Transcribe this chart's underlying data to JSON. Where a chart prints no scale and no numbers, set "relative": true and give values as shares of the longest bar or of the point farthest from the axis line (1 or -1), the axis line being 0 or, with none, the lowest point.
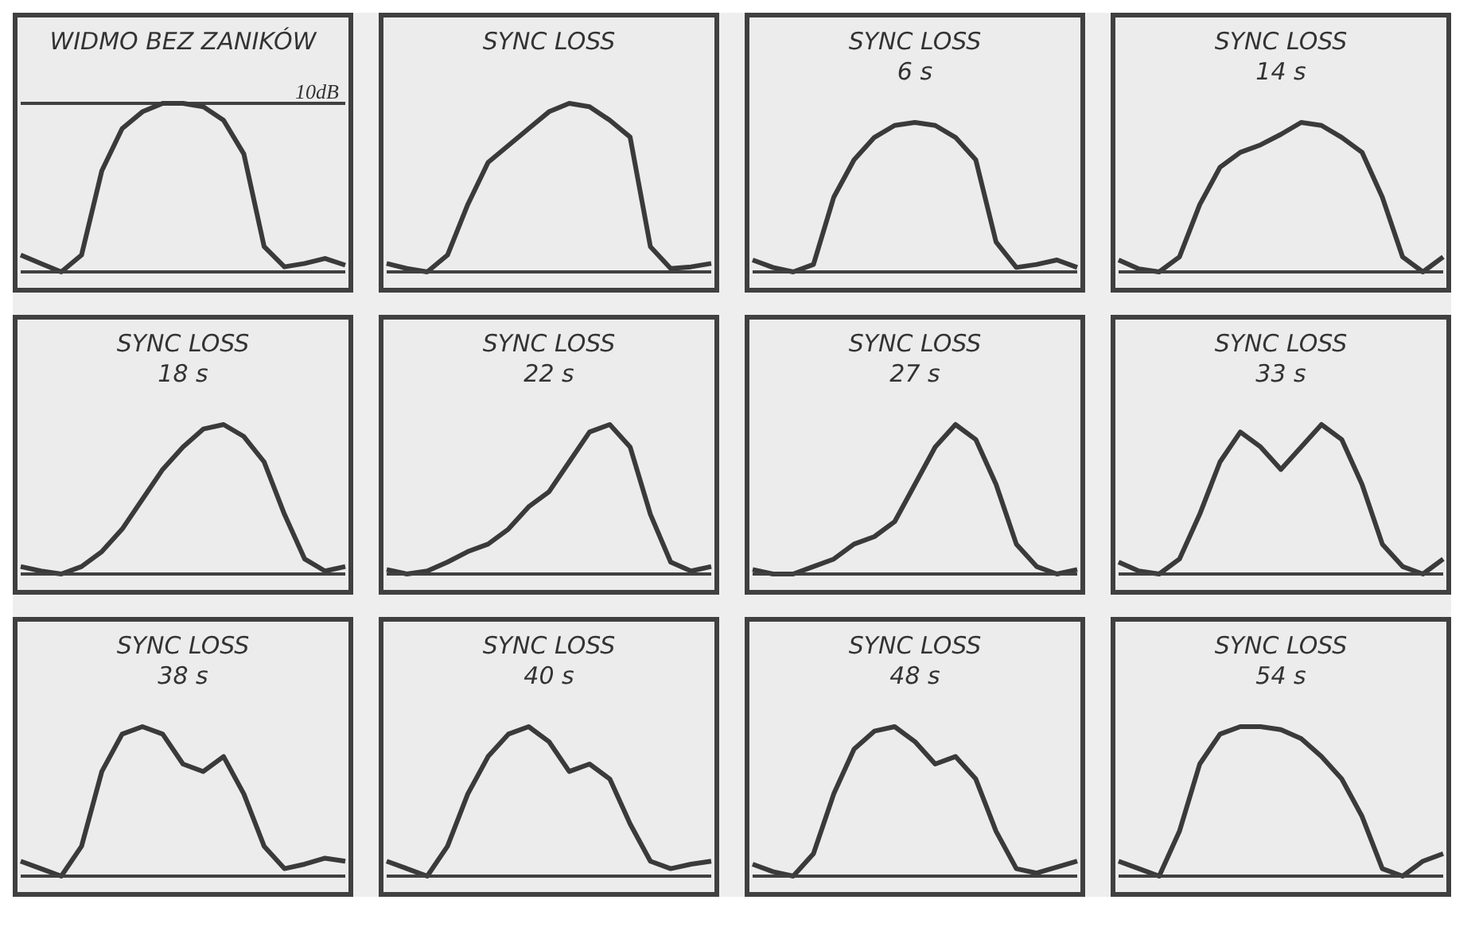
{
  "chart_data": [
    {
      "type": "line",
      "title": "WIDMO BEZ ZANIKÓW",
      "relative": true,
      "tick_labels": false,
      "grid": false,
      "legend": false,
      "marker": "none",
      "line_style": "solid",
      "ref_lines": [
        {
          "axis": "y",
          "value": 1,
          "label": "10dB"
        }
      ],
      "categories": [
        null,
        null,
        null,
        null,
        null,
        null,
        null,
        null,
        null,
        null,
        null,
        null,
        null,
        null,
        null,
        null,
        null
      ],
      "series": [
        {
          "color": "#3a3a3a",
          "values": [
            0.1,
            0.05,
            0,
            0.1,
            0.6,
            0.85,
            0.95,
            1,
            1,
            0.98,
            0.9,
            0.7,
            0.15,
            0.03,
            0.05,
            0.08,
            0.04
          ]
        }
      ]
    },
    {
      "type": "line",
      "title": "SYNC LOSS",
      "relative": true,
      "tick_labels": false,
      "grid": false,
      "legend": false,
      "marker": "none",
      "line_style": "solid",
      "categories": [
        null,
        null,
        null,
        null,
        null,
        null,
        null,
        null,
        null,
        null,
        null,
        null,
        null,
        null,
        null,
        null,
        null
      ],
      "series": [
        {
          "color": "#3a3a3a",
          "values": [
            0.05,
            0.02,
            0,
            0.1,
            0.4,
            0.65,
            0.75,
            0.85,
            0.95,
            1,
            0.98,
            0.9,
            0.8,
            0.15,
            0.02,
            0.03,
            0.05
          ]
        }
      ]
    },
    {
      "type": "line",
      "title": "SYNC LOSS",
      "subtitle": "6 s",
      "relative": true,
      "tick_labels": false,
      "grid": false,
      "legend": false,
      "marker": "none",
      "line_style": "solid",
      "categories": [
        null,
        null,
        null,
        null,
        null,
        null,
        null,
        null,
        null,
        null,
        null,
        null,
        null,
        null,
        null,
        null,
        null
      ],
      "series": [
        {
          "color": "#3a3a3a",
          "values": [
            0.08,
            0.03,
            0,
            0.05,
            0.5,
            0.75,
            0.9,
            0.98,
            1,
            0.98,
            0.9,
            0.75,
            0.2,
            0.03,
            0.05,
            0.08,
            0.03
          ]
        }
      ]
    },
    {
      "type": "line",
      "title": "SYNC LOSS",
      "subtitle": "14 s",
      "relative": true,
      "tick_labels": false,
      "grid": false,
      "legend": false,
      "marker": "none",
      "line_style": "solid",
      "categories": [
        null,
        null,
        null,
        null,
        null,
        null,
        null,
        null,
        null,
        null,
        null,
        null,
        null,
        null,
        null,
        null,
        null
      ],
      "series": [
        {
          "color": "#3a3a3a",
          "values": [
            0.08,
            0.02,
            0,
            0.1,
            0.45,
            0.7,
            0.8,
            0.85,
            0.92,
            1,
            0.98,
            0.9,
            0.8,
            0.5,
            0.1,
            0,
            0.1
          ]
        }
      ]
    },
    {
      "type": "line",
      "title": "SYNC LOSS",
      "subtitle": "18 s",
      "relative": true,
      "tick_labels": false,
      "grid": false,
      "legend": false,
      "marker": "none",
      "line_style": "solid",
      "categories": [
        null,
        null,
        null,
        null,
        null,
        null,
        null,
        null,
        null,
        null,
        null,
        null,
        null,
        null,
        null,
        null,
        null
      ],
      "series": [
        {
          "color": "#3a3a3a",
          "values": [
            0.05,
            0.02,
            0,
            0.05,
            0.15,
            0.3,
            0.5,
            0.7,
            0.85,
            0.97,
            1,
            0.92,
            0.75,
            0.4,
            0.1,
            0.02,
            0.05
          ]
        }
      ]
    },
    {
      "type": "line",
      "title": "SYNC LOSS",
      "subtitle": "22 s",
      "relative": true,
      "tick_labels": false,
      "grid": false,
      "legend": false,
      "marker": "none",
      "line_style": "solid",
      "categories": [
        null,
        null,
        null,
        null,
        null,
        null,
        null,
        null,
        null,
        null,
        null,
        null,
        null,
        null,
        null,
        null,
        null
      ],
      "series": [
        {
          "color": "#3a3a3a",
          "values": [
            0.03,
            0,
            0.02,
            0.08,
            0.15,
            0.2,
            0.3,
            0.45,
            0.55,
            0.75,
            0.95,
            1,
            0.85,
            0.4,
            0.08,
            0.02,
            0.05
          ]
        }
      ]
    },
    {
      "type": "line",
      "title": "SYNC LOSS",
      "subtitle": "27 s",
      "relative": true,
      "tick_labels": false,
      "grid": false,
      "legend": false,
      "marker": "none",
      "line_style": "solid",
      "categories": [
        null,
        null,
        null,
        null,
        null,
        null,
        null,
        null,
        null,
        null,
        null,
        null,
        null,
        null,
        null,
        null,
        null
      ],
      "series": [
        {
          "color": "#3a3a3a",
          "values": [
            0.03,
            0,
            0,
            0.05,
            0.1,
            0.2,
            0.25,
            0.35,
            0.6,
            0.85,
            1,
            0.9,
            0.6,
            0.2,
            0.05,
            0,
            0.03
          ]
        }
      ]
    },
    {
      "type": "line",
      "title": "SYNC LOSS",
      "subtitle": "33 s",
      "relative": true,
      "tick_labels": false,
      "grid": false,
      "legend": false,
      "marker": "none",
      "line_style": "solid",
      "categories": [
        null,
        null,
        null,
        null,
        null,
        null,
        null,
        null,
        null,
        null,
        null,
        null,
        null,
        null,
        null,
        null,
        null
      ],
      "series": [
        {
          "color": "#3a3a3a",
          "values": [
            0.08,
            0.02,
            0,
            0.1,
            0.4,
            0.75,
            0.95,
            0.85,
            0.7,
            0.85,
            1,
            0.9,
            0.6,
            0.2,
            0.05,
            0,
            0.1
          ]
        }
      ]
    },
    {
      "type": "line",
      "title": "SYNC LOSS",
      "subtitle": "38 s",
      "relative": true,
      "tick_labels": false,
      "grid": false,
      "legend": false,
      "marker": "none",
      "line_style": "solid",
      "categories": [
        null,
        null,
        null,
        null,
        null,
        null,
        null,
        null,
        null,
        null,
        null,
        null,
        null,
        null,
        null,
        null,
        null
      ],
      "series": [
        {
          "color": "#3a3a3a",
          "values": [
            0.1,
            0.05,
            0,
            0.2,
            0.7,
            0.95,
            1,
            0.95,
            0.75,
            0.7,
            0.8,
            0.55,
            0.2,
            0.05,
            0.08,
            0.12,
            0.1
          ]
        }
      ]
    },
    {
      "type": "line",
      "title": "SYNC LOSS",
      "subtitle": "40 s",
      "relative": true,
      "tick_labels": false,
      "grid": false,
      "legend": false,
      "marker": "none",
      "line_style": "solid",
      "categories": [
        null,
        null,
        null,
        null,
        null,
        null,
        null,
        null,
        null,
        null,
        null,
        null,
        null,
        null,
        null,
        null,
        null
      ],
      "series": [
        {
          "color": "#3a3a3a",
          "values": [
            0.1,
            0.05,
            0,
            0.2,
            0.55,
            0.8,
            0.95,
            1,
            0.9,
            0.7,
            0.75,
            0.65,
            0.35,
            0.1,
            0.05,
            0.08,
            0.1
          ]
        }
      ]
    },
    {
      "type": "line",
      "title": "SYNC LOSS",
      "subtitle": "48 s",
      "relative": true,
      "tick_labels": false,
      "grid": false,
      "legend": false,
      "marker": "none",
      "line_style": "solid",
      "categories": [
        null,
        null,
        null,
        null,
        null,
        null,
        null,
        null,
        null,
        null,
        null,
        null,
        null,
        null,
        null,
        null,
        null
      ],
      "series": [
        {
          "color": "#3a3a3a",
          "values": [
            0.08,
            0.03,
            0,
            0.15,
            0.55,
            0.85,
            0.97,
            1,
            0.9,
            0.75,
            0.8,
            0.65,
            0.3,
            0.05,
            0.02,
            0.06,
            0.1
          ]
        }
      ]
    },
    {
      "type": "line",
      "title": "SYNC LOSS",
      "subtitle": "54 s",
      "relative": true,
      "tick_labels": false,
      "grid": false,
      "legend": false,
      "marker": "none",
      "line_style": "solid",
      "categories": [
        null,
        null,
        null,
        null,
        null,
        null,
        null,
        null,
        null,
        null,
        null,
        null,
        null,
        null,
        null,
        null,
        null
      ],
      "series": [
        {
          "color": "#3a3a3a",
          "values": [
            0.1,
            0.05,
            0,
            0.3,
            0.75,
            0.95,
            1,
            1,
            0.98,
            0.92,
            0.8,
            0.65,
            0.4,
            0.05,
            0,
            0.1,
            0.15
          ]
        }
      ]
    }
  ]
}
